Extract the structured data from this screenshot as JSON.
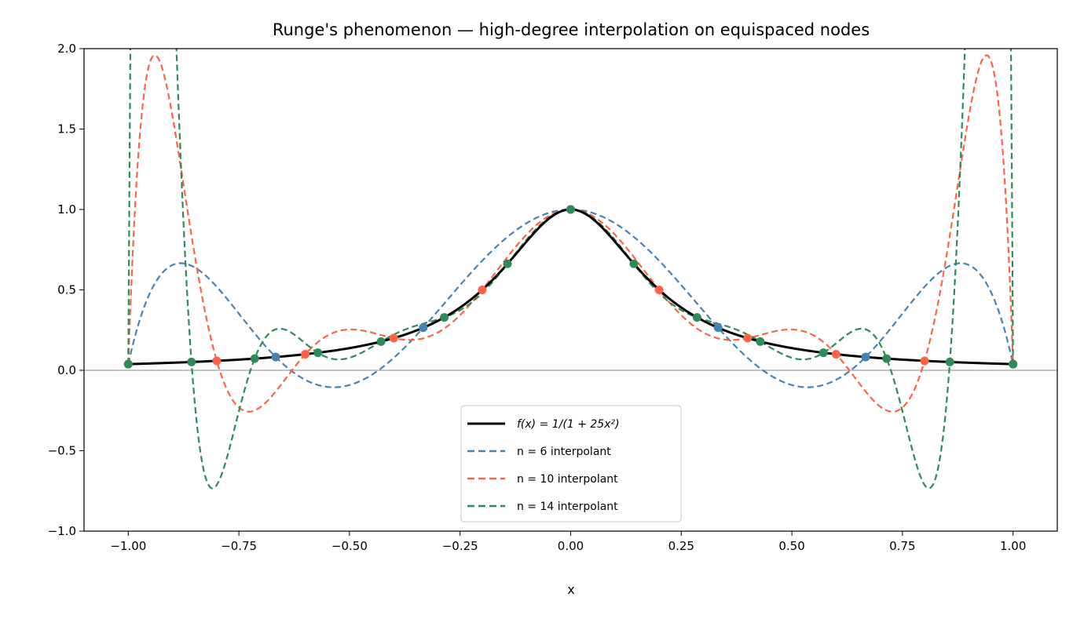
{
  "chart_data": {
    "type": "line",
    "title": "Runge's phenomenon — high-degree interpolation on equispaced nodes",
    "xlabel": "x",
    "ylabel": "",
    "xlim": [
      -1.1,
      1.1
    ],
    "ylim": [
      -1.0,
      2.0
    ],
    "x_ticks": [
      "−1.00",
      "−0.75",
      "−0.50",
      "−0.25",
      "0.00",
      "0.25",
      "0.50",
      "0.75",
      "1.00"
    ],
    "x_tick_values": [
      -1,
      -0.75,
      -0.5,
      -0.25,
      0,
      0.25,
      0.5,
      0.75,
      1
    ],
    "y_ticks": [
      "−1.0",
      "−0.5",
      "0.0",
      "0.5",
      "1.0",
      "1.5",
      "2.0"
    ],
    "y_tick_values": [
      -1,
      -0.5,
      0,
      0.5,
      1,
      1.5,
      2
    ],
    "grid": false,
    "reference_line_y": 0,
    "legend_position": "lower-center",
    "function": {
      "name": "f(x) = 1/(1 + 25x²)",
      "color": "#000000",
      "style": "solid"
    },
    "series": [
      {
        "name": "n = 6 interpolant",
        "color": "#4682b4",
        "style": "dashed",
        "nodes_x": [
          -1,
          -0.6667,
          -0.3333,
          0,
          0.3333,
          0.6667,
          1
        ],
        "nodes_y": [
          0.0385,
          0.0826,
          0.2647,
          1,
          0.2647,
          0.0826,
          0.0385
        ]
      },
      {
        "name": "n = 10 interpolant",
        "color": "#ff6347",
        "style": "dashed",
        "nodes_x": [
          -1,
          -0.8,
          -0.6,
          -0.4,
          -0.2,
          0,
          0.2,
          0.4,
          0.6,
          0.8,
          1
        ],
        "nodes_y": [
          0.0385,
          0.0588,
          0.1,
          0.2,
          0.5,
          1,
          0.5,
          0.2,
          0.1,
          0.0588,
          0.0385
        ]
      },
      {
        "name": "n = 14 interpolant",
        "color": "#2e8b57",
        "style": "dashed",
        "nodes_x": [
          -1,
          -0.857143,
          -0.714286,
          -0.571429,
          -0.428571,
          -0.285714,
          -0.142857,
          0,
          0.142857,
          0.285714,
          0.428571,
          0.571429,
          0.714286,
          0.857143,
          1
        ],
        "nodes_y": [
          0.0385,
          0.0516,
          0.0727,
          0.1091,
          0.1788,
          0.3289,
          0.6622,
          1,
          0.6622,
          0.3289,
          0.1788,
          0.1091,
          0.0727,
          0.0516,
          0.0385
        ]
      }
    ]
  }
}
